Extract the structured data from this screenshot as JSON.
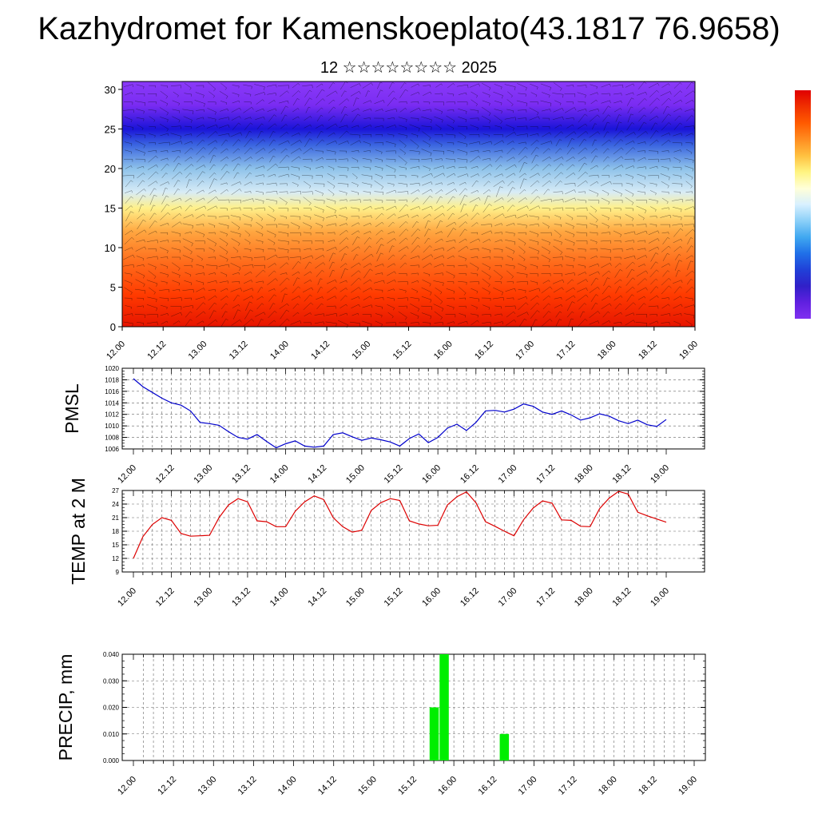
{
  "header": {
    "title": "Kazhydromet for Kamenskoeplato(43.1817 76.9658)",
    "subtitle": "12 ☆☆☆☆☆☆☆☆ 2025"
  },
  "colors": {
    "pmsl_line": "#0000cc",
    "temp_line": "#dd0000",
    "precip_bar": "#00ee00"
  },
  "chart_data": [
    {
      "type": "heatmap",
      "title": "",
      "xlabel": "",
      "ylabel": "",
      "x_tick_labels": [
        "12.00",
        "12.12",
        "13.00",
        "13.12",
        "14.00",
        "14.12",
        "15.00",
        "15.12",
        "16.00",
        "16.12",
        "17.00",
        "17.12",
        "18.00",
        "18.12",
        "19.00"
      ],
      "y_ticks": [
        0,
        5,
        10,
        15,
        20,
        25,
        30
      ],
      "ylim": [
        0,
        31
      ],
      "value_bands_bottom_to_top": [
        {
          "y": 0,
          "color": "#e61400"
        },
        {
          "y": 4,
          "color": "#ff3a00"
        },
        {
          "y": 8,
          "color": "#ff6a1a"
        },
        {
          "y": 12,
          "color": "#ffa640"
        },
        {
          "y": 15,
          "color": "#fff08a"
        },
        {
          "y": 17,
          "color": "#d8ecf6"
        },
        {
          "y": 20,
          "color": "#8ec2ea"
        },
        {
          "y": 23,
          "color": "#3a64e0"
        },
        {
          "y": 25,
          "color": "#1a14d8"
        },
        {
          "y": 28,
          "color": "#7a2cf2"
        },
        {
          "y": 31,
          "color": "#8a3af8"
        }
      ],
      "colorbar": [
        "#e00000",
        "#f03000",
        "#ff5a00",
        "#ff8c20",
        "#ffc040",
        "#fff480",
        "#ffffd8",
        "#d8f0ff",
        "#8cd0f8",
        "#40a8f0",
        "#2070e8",
        "#2040d8",
        "#3020c8",
        "#6020e0",
        "#8030f0"
      ]
    },
    {
      "type": "line",
      "ylabel": "PMSL",
      "x_tick_labels": [
        "12.00",
        "12.12",
        "13.00",
        "13.12",
        "14.00",
        "14.12",
        "15.00",
        "15.12",
        "16.00",
        "16.12",
        "17.00",
        "17.12",
        "18.00",
        "18.12",
        "19.00"
      ],
      "ylim": [
        1006,
        1020
      ],
      "y_ticks": [
        1006,
        1008,
        1010,
        1012,
        1014,
        1016,
        1018,
        1020
      ],
      "y_tick_labels": [
        "1006",
        "1008",
        "1010",
        "1012",
        "1014",
        "1016",
        "1018",
        "1020"
      ],
      "series": [
        {
          "values": [
            1018.2,
            1016.8,
            1015.8,
            1014.8,
            1014.0,
            1013.6,
            1012.6,
            1010.6,
            1010.4,
            1010.1,
            1009.0,
            1008.0,
            1007.7,
            1008.5,
            1007.3,
            1006.2,
            1006.9,
            1007.4,
            1006.5,
            1006.3,
            1006.5,
            1008.5,
            1008.8,
            1008.1,
            1007.5,
            1007.9,
            1007.6,
            1007.2,
            1006.5,
            1007.8,
            1008.6,
            1007.1,
            1008.0,
            1009.6,
            1010.3,
            1009.2,
            1010.6,
            1012.6,
            1012.7,
            1012.4,
            1012.9,
            1013.8,
            1013.4,
            1012.4,
            1012.0,
            1012.6,
            1011.9,
            1011.0,
            1011.4,
            1012.1,
            1011.7,
            1010.9,
            1010.4,
            1011.0,
            1010.2,
            1009.9,
            1011.1
          ]
        }
      ]
    },
    {
      "type": "line",
      "ylabel": "TEMP at 2 M",
      "x_tick_labels": [
        "12.00",
        "12.12",
        "13.00",
        "13.12",
        "14.00",
        "14.12",
        "15.00",
        "15.12",
        "16.00",
        "16.12",
        "17.00",
        "17.12",
        "18.00",
        "18.12",
        "19.00"
      ],
      "ylim": [
        9,
        27
      ],
      "y_ticks": [
        9,
        12,
        15,
        18,
        21,
        24,
        27
      ],
      "y_tick_labels": [
        "9",
        "12",
        "15",
        "18",
        "21",
        "24",
        "27"
      ],
      "series": [
        {
          "values": [
            12.0,
            16.8,
            19.5,
            21.0,
            20.4,
            17.5,
            16.9,
            17.0,
            17.1,
            21.0,
            23.8,
            25.2,
            24.5,
            20.3,
            20.1,
            19.0,
            19.0,
            22.4,
            24.5,
            25.8,
            25.0,
            21.0,
            19.0,
            17.8,
            18.2,
            22.6,
            24.3,
            25.2,
            24.8,
            20.3,
            19.6,
            19.2,
            19.3,
            23.8,
            25.6,
            26.7,
            24.3,
            20.1,
            19.1,
            18.0,
            17.0,
            20.5,
            23.1,
            24.7,
            24.2,
            20.5,
            20.4,
            19.1,
            19.0,
            23.0,
            25.3,
            26.8,
            26.2,
            22.2,
            21.4,
            20.7,
            20.0
          ]
        }
      ]
    },
    {
      "type": "bar",
      "ylabel": "PRECIP, mm",
      "x_tick_labels": [
        "12.00",
        "12.12",
        "13.00",
        "13.12",
        "14.00",
        "14.12",
        "15.00",
        "15.12",
        "16.00",
        "16.12",
        "17.00",
        "17.12",
        "18.00",
        "18.12",
        "19.00"
      ],
      "ylim": [
        0,
        0.04
      ],
      "y_ticks": [
        0,
        0.01,
        0.02,
        0.03,
        0.04
      ],
      "y_tick_labels": [
        "0.000",
        "0.010",
        "0.020",
        "0.030",
        "0.040"
      ],
      "values": [
        0,
        0,
        0,
        0,
        0,
        0,
        0,
        0,
        0,
        0,
        0,
        0,
        0,
        0,
        0,
        0,
        0,
        0,
        0,
        0,
        0,
        0,
        0,
        0,
        0,
        0,
        0,
        0,
        0,
        0,
        0.02,
        0.04,
        0,
        0,
        0,
        0,
        0,
        0.01,
        0,
        0,
        0,
        0,
        0,
        0,
        0,
        0,
        0,
        0,
        0,
        0,
        0,
        0,
        0,
        0,
        0,
        0,
        0
      ]
    }
  ]
}
